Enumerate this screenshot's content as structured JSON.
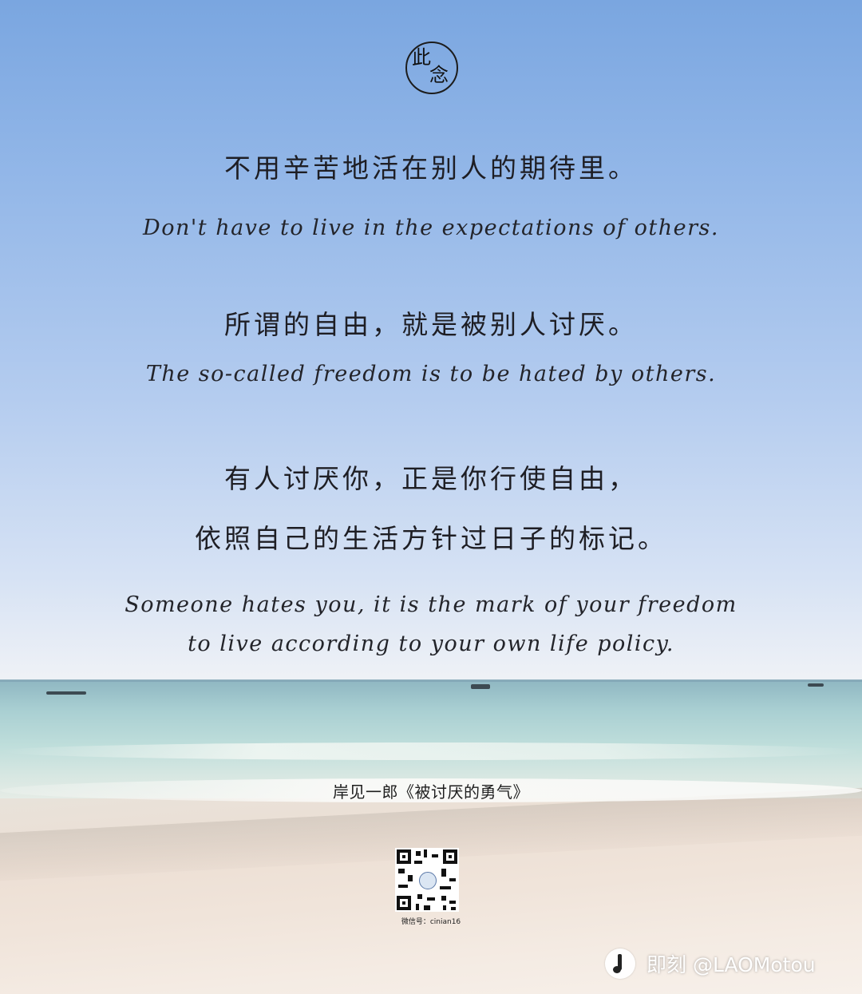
{
  "poster": {
    "logo_chars": [
      "此",
      "念"
    ],
    "quote_1_zh": "不用辛苦地活在别人的期待里。",
    "quote_1_en": "Don't have to live in the expectations of others.",
    "quote_2_zh": "所谓的自由，就是被别人讨厌。",
    "quote_2_en": "The so-called freedom is to be hated by others.",
    "quote_3_zh_line1": "有人讨厌你，正是你行使自由，",
    "quote_3_zh_line2": "依照自己的生活方针过日子的标记。",
    "quote_3_en_line1": "Someone hates you, it is the mark of your freedom",
    "quote_3_en_line2": "to live according to your own life policy.",
    "credit": "岸见一郎《被讨厌的勇气》",
    "qr_label": "微信号：cinian16"
  },
  "watermark": {
    "text": "即刻 @LAOMotou"
  },
  "colors": {
    "sky_top": "#7aa6e0",
    "sky_bottom": "#eef1f6",
    "sea": "#a9cfd2",
    "sand": "#efe3d8",
    "text": "#1e1e24"
  }
}
